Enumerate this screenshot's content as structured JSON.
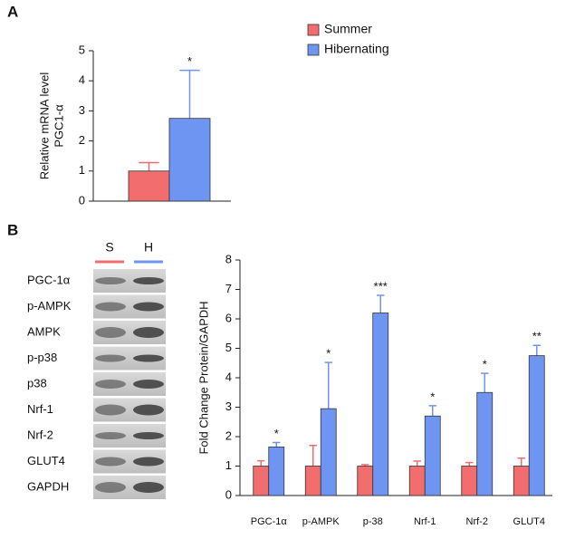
{
  "chart_data": [
    {
      "type": "bar",
      "panel": "A",
      "ylabel": [
        "Relative mRNA level",
        "PGC1-α"
      ],
      "categories": [
        null
      ],
      "series": [
        {
          "name": "Summer",
          "color": "#f26d6d",
          "values": [
            1.0
          ],
          "errors": [
            0.28
          ]
        },
        {
          "name": "Hibernating",
          "color": "#6f95f2",
          "values": [
            2.75
          ],
          "errors": [
            1.6
          ]
        }
      ],
      "significance": [
        "*"
      ],
      "ylim": [
        0,
        5
      ],
      "yticks": [
        0,
        1,
        2,
        3,
        4,
        5
      ],
      "legend": "top-right"
    },
    {
      "type": "bar",
      "panel": "B",
      "ylabel": [
        "Fold Change Protein/GAPDH"
      ],
      "categories": [
        "PGC-1α",
        "p-AMPK",
        "p-38",
        "Nrf-1",
        "Nrf-2",
        "GLUT4"
      ],
      "series": [
        {
          "name": "Summer",
          "color": "#f26d6d",
          "values": [
            1,
            1,
            1,
            1,
            1,
            1
          ],
          "errors": [
            0.18,
            0.7,
            0.05,
            0.17,
            0.12,
            0.27
          ]
        },
        {
          "name": "Hibernating",
          "color": "#6f95f2",
          "values": [
            1.65,
            2.95,
            6.2,
            2.7,
            3.5,
            4.75
          ],
          "errors": [
            0.15,
            1.57,
            0.6,
            0.35,
            0.65,
            0.35
          ]
        }
      ],
      "significance": [
        "*",
        "*",
        "***",
        "*",
        "*",
        "**"
      ],
      "ylim": [
        0,
        8
      ],
      "yticks": [
        0,
        1,
        2,
        3,
        4,
        5,
        6,
        7,
        8
      ]
    }
  ],
  "blot": {
    "lanes": [
      {
        "label": "S",
        "color": "#f26d6d"
      },
      {
        "label": "H",
        "color": "#6f95f2"
      }
    ],
    "rows": [
      "PGC-1α",
      "p-AMPK",
      "AMPK",
      "p-p38",
      "p38",
      "Nrf-1",
      "Nrf-2",
      "GLUT4",
      "GAPDH"
    ]
  }
}
